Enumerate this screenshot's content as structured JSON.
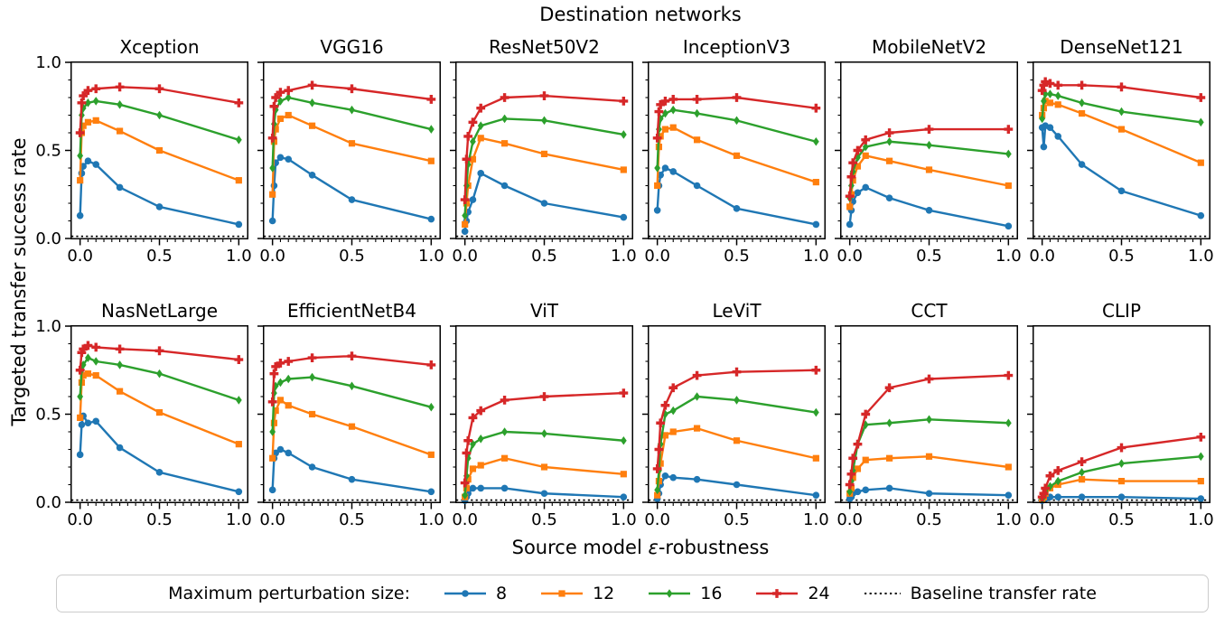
{
  "figure": {
    "suptitle": "Destination networks",
    "ylabel": "Targeted transfer success rate",
    "xlabel_prefix": "Source model ",
    "xlabel_epsilon": "ε",
    "xlabel_suffix": "-robustness"
  },
  "legend": {
    "title": "Maximum perturbation size:",
    "baseline_label": "Baseline transfer rate"
  },
  "chart_data": {
    "type": "line",
    "grid": "off",
    "suptitle": "Destination networks",
    "xlabel": "Source model ε-robustness",
    "ylabel": "Targeted transfer success rate",
    "x": [
      0,
      0.01,
      0.02,
      0.05,
      0.1,
      0.25,
      0.5,
      1.0
    ],
    "xlim": [
      -0.055,
      1.055
    ],
    "ylim": [
      0,
      1.0
    ],
    "xticks": [
      0.0,
      0.5,
      1.0
    ],
    "yticks": [
      0.0,
      0.5,
      1.0
    ],
    "baseline_value": 0.012,
    "baseline_color": "#000000",
    "series_meta": [
      {
        "name": "8",
        "color": "#1f77b4",
        "marker": "circle"
      },
      {
        "name": "12",
        "color": "#ff7f0e",
        "marker": "square"
      },
      {
        "name": "16",
        "color": "#2ca02c",
        "marker": "diamond"
      },
      {
        "name": "24",
        "color": "#d62728",
        "marker": "plus"
      }
    ],
    "subplots": [
      {
        "title": "Xception",
        "series": [
          [
            0.13,
            0.37,
            0.41,
            0.44,
            0.42,
            0.29,
            0.18,
            0.08
          ],
          [
            0.33,
            0.6,
            0.64,
            0.66,
            0.67,
            0.61,
            0.5,
            0.33
          ],
          [
            0.47,
            0.7,
            0.74,
            0.77,
            0.78,
            0.76,
            0.7,
            0.56
          ],
          [
            0.6,
            0.77,
            0.81,
            0.84,
            0.85,
            0.86,
            0.85,
            0.77
          ]
        ]
      },
      {
        "title": "VGG16",
        "series": [
          [
            0.1,
            0.3,
            0.43,
            0.46,
            0.45,
            0.36,
            0.22,
            0.11
          ],
          [
            0.25,
            0.55,
            0.62,
            0.68,
            0.7,
            0.64,
            0.54,
            0.44
          ],
          [
            0.4,
            0.65,
            0.73,
            0.78,
            0.8,
            0.77,
            0.73,
            0.62
          ],
          [
            0.57,
            0.75,
            0.8,
            0.83,
            0.84,
            0.87,
            0.85,
            0.79
          ]
        ]
      },
      {
        "title": "ResNet50V2",
        "series": [
          [
            0.04,
            0.1,
            0.15,
            0.22,
            0.37,
            0.3,
            0.2,
            0.12
          ],
          [
            0.08,
            0.2,
            0.3,
            0.45,
            0.57,
            0.54,
            0.48,
            0.39
          ],
          [
            0.13,
            0.3,
            0.42,
            0.55,
            0.64,
            0.68,
            0.67,
            0.59
          ],
          [
            0.22,
            0.45,
            0.58,
            0.66,
            0.74,
            0.8,
            0.81,
            0.78
          ]
        ]
      },
      {
        "title": "InceptionV3",
        "series": [
          [
            0.16,
            0.3,
            0.36,
            0.4,
            0.38,
            0.3,
            0.17,
            0.08
          ],
          [
            0.3,
            0.52,
            0.58,
            0.62,
            0.63,
            0.56,
            0.47,
            0.32
          ],
          [
            0.4,
            0.62,
            0.68,
            0.71,
            0.73,
            0.71,
            0.67,
            0.55
          ],
          [
            0.57,
            0.72,
            0.76,
            0.78,
            0.79,
            0.79,
            0.8,
            0.74
          ]
        ]
      },
      {
        "title": "MobileNetV2",
        "series": [
          [
            0.08,
            0.16,
            0.21,
            0.26,
            0.29,
            0.23,
            0.16,
            0.07
          ],
          [
            0.18,
            0.25,
            0.33,
            0.41,
            0.47,
            0.44,
            0.39,
            0.3
          ],
          [
            0.23,
            0.3,
            0.38,
            0.46,
            0.52,
            0.55,
            0.53,
            0.48
          ],
          [
            0.24,
            0.35,
            0.43,
            0.5,
            0.56,
            0.6,
            0.62,
            0.62
          ]
        ]
      },
      {
        "title": "DenseNet121",
        "series": [
          [
            0.63,
            0.52,
            0.64,
            0.63,
            0.58,
            0.42,
            0.27,
            0.13
          ],
          [
            0.7,
            0.74,
            0.78,
            0.77,
            0.76,
            0.71,
            0.62,
            0.43
          ],
          [
            0.68,
            0.78,
            0.82,
            0.82,
            0.81,
            0.77,
            0.72,
            0.66
          ],
          [
            0.84,
            0.87,
            0.89,
            0.88,
            0.87,
            0.87,
            0.86,
            0.8
          ]
        ]
      },
      {
        "title": "NasNetLarge",
        "series": [
          [
            0.27,
            0.44,
            0.49,
            0.45,
            0.46,
            0.31,
            0.17,
            0.06
          ],
          [
            0.48,
            0.68,
            0.72,
            0.73,
            0.72,
            0.63,
            0.51,
            0.33
          ],
          [
            0.6,
            0.75,
            0.78,
            0.82,
            0.8,
            0.78,
            0.73,
            0.58
          ],
          [
            0.75,
            0.85,
            0.87,
            0.89,
            0.88,
            0.87,
            0.86,
            0.81
          ]
        ]
      },
      {
        "title": "EfficientNetB4",
        "series": [
          [
            0.07,
            0.25,
            0.28,
            0.3,
            0.28,
            0.2,
            0.13,
            0.06
          ],
          [
            0.25,
            0.45,
            0.52,
            0.58,
            0.55,
            0.5,
            0.43,
            0.27
          ],
          [
            0.4,
            0.62,
            0.66,
            0.68,
            0.7,
            0.71,
            0.66,
            0.54
          ],
          [
            0.57,
            0.73,
            0.77,
            0.79,
            0.8,
            0.82,
            0.83,
            0.78
          ]
        ]
      },
      {
        "title": "ViT",
        "series": [
          [
            0.01,
            0.03,
            0.05,
            0.08,
            0.08,
            0.08,
            0.05,
            0.03
          ],
          [
            0.03,
            0.08,
            0.13,
            0.19,
            0.21,
            0.25,
            0.2,
            0.16
          ],
          [
            0.04,
            0.15,
            0.25,
            0.33,
            0.36,
            0.4,
            0.39,
            0.35
          ],
          [
            0.11,
            0.28,
            0.35,
            0.48,
            0.52,
            0.58,
            0.6,
            0.62
          ]
        ]
      },
      {
        "title": "LeViT",
        "series": [
          [
            0.02,
            0.05,
            0.1,
            0.15,
            0.14,
            0.13,
            0.1,
            0.04
          ],
          [
            0.04,
            0.12,
            0.22,
            0.38,
            0.4,
            0.42,
            0.35,
            0.25
          ],
          [
            0.07,
            0.18,
            0.33,
            0.5,
            0.52,
            0.6,
            0.58,
            0.51
          ],
          [
            0.19,
            0.3,
            0.45,
            0.55,
            0.65,
            0.72,
            0.74,
            0.75
          ]
        ]
      },
      {
        "title": "CCT",
        "series": [
          [
            0.02,
            0.03,
            0.05,
            0.06,
            0.07,
            0.08,
            0.05,
            0.04
          ],
          [
            0.05,
            0.08,
            0.14,
            0.19,
            0.24,
            0.25,
            0.26,
            0.2
          ],
          [
            0.06,
            0.12,
            0.18,
            0.33,
            0.44,
            0.45,
            0.47,
            0.45
          ],
          [
            0.1,
            0.16,
            0.25,
            0.33,
            0.5,
            0.65,
            0.7,
            0.72
          ]
        ]
      },
      {
        "title": "CLIP",
        "series": [
          [
            0.01,
            0.02,
            0.02,
            0.03,
            0.03,
            0.03,
            0.03,
            0.02
          ],
          [
            0.02,
            0.03,
            0.05,
            0.08,
            0.1,
            0.13,
            0.12,
            0.12
          ],
          [
            0.02,
            0.04,
            0.06,
            0.09,
            0.12,
            0.17,
            0.22,
            0.26
          ],
          [
            0.03,
            0.05,
            0.08,
            0.15,
            0.18,
            0.23,
            0.31,
            0.37
          ]
        ]
      }
    ]
  }
}
